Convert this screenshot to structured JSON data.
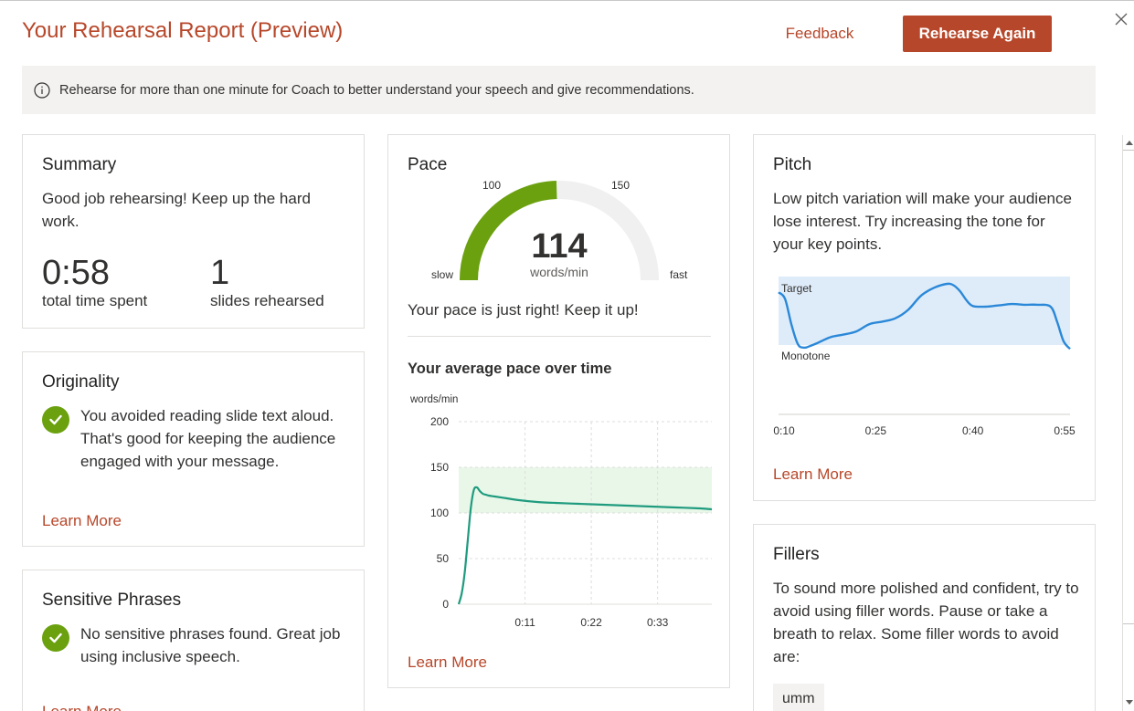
{
  "header": {
    "title": "Your Rehearsal Report (Preview)",
    "feedback_label": "Feedback",
    "rehearse_label": "Rehearse Again"
  },
  "info": {
    "text": "Rehearse for more than one minute for Coach to better understand your speech and give recommendations."
  },
  "summary": {
    "title": "Summary",
    "message": "Good job rehearsing! Keep up the hard work.",
    "time_value": "0:58",
    "time_label": "total time spent",
    "slides_value": "1",
    "slides_label": "slides rehearsed"
  },
  "originality": {
    "title": "Originality",
    "message": "You avoided reading slide text aloud. That's good for keeping the audience engaged with your message.",
    "learn_more": "Learn More"
  },
  "sensitive": {
    "title": "Sensitive Phrases",
    "message": "No sensitive phrases found. Great job using inclusive speech.",
    "learn_more": "Learn More"
  },
  "pace": {
    "title": "Pace",
    "gauge": {
      "value": "114",
      "unit": "words/min",
      "label_low": "100",
      "label_high": "150",
      "label_slow": "slow",
      "label_fast": "fast",
      "fill_color": "#6ba10f",
      "track_color": "#f0f0f0"
    },
    "message": "Your pace is just right! Keep it up!",
    "chart_title": "Your average pace over time",
    "learn_more": "Learn More"
  },
  "pitch": {
    "title": "Pitch",
    "message": "Low pitch variation will make your audience lose interest. Try increasing the tone for your key points.",
    "label_target": "Target",
    "label_monotone": "Monotone",
    "learn_more": "Learn More"
  },
  "fillers": {
    "title": "Fillers",
    "message": "To sound more polished and confident, try to avoid using filler words. Pause or take a breath to relax. Some filler words to avoid are:",
    "chip": "umm"
  },
  "chart_data": [
    {
      "type": "line",
      "ylabel": "words/min",
      "ylim": [
        0,
        200
      ],
      "yticks": [
        "200",
        "150",
        "100",
        "50",
        "0"
      ],
      "xticks": [
        "0:11",
        "0:22",
        "0:33"
      ],
      "target_band": [
        100,
        150
      ],
      "grid": true,
      "line_color": "#1f9b7e",
      "band_color": "#e9f7e9",
      "x": [
        0,
        0.5,
        1,
        1.5,
        2,
        2.5,
        3,
        3.5,
        4,
        4.5,
        5,
        6,
        8,
        10,
        13,
        16,
        20,
        24,
        28,
        32,
        36,
        40,
        42
      ],
      "y": [
        0,
        12,
        35,
        70,
        105,
        125,
        128,
        124,
        121,
        120,
        119,
        118,
        116,
        114,
        112,
        111,
        110,
        109,
        108,
        107,
        106,
        105,
        104
      ]
    },
    {
      "type": "line",
      "xticks": [
        "0:10",
        "0:25",
        "0:40",
        "0:55"
      ],
      "band_labels": [
        "Target",
        "Monotone"
      ],
      "line_color": "#2b88d8",
      "band_color": "#deecf9",
      "x": [
        10,
        11,
        12,
        13,
        14,
        15,
        16,
        18,
        20,
        22,
        24,
        26,
        28,
        30,
        32,
        34,
        36,
        37,
        38,
        39,
        40,
        42,
        44,
        46,
        48,
        50,
        52,
        53,
        54,
        55
      ],
      "y": [
        0.95,
        0.85,
        0.45,
        0.15,
        0.1,
        0.13,
        0.17,
        0.26,
        0.3,
        0.35,
        0.46,
        0.5,
        0.55,
        0.68,
        0.9,
        1.02,
        1.08,
        1.06,
        0.97,
        0.83,
        0.74,
        0.73,
        0.75,
        0.77,
        0.76,
        0.76,
        0.73,
        0.5,
        0.2,
        0.08
      ]
    }
  ]
}
